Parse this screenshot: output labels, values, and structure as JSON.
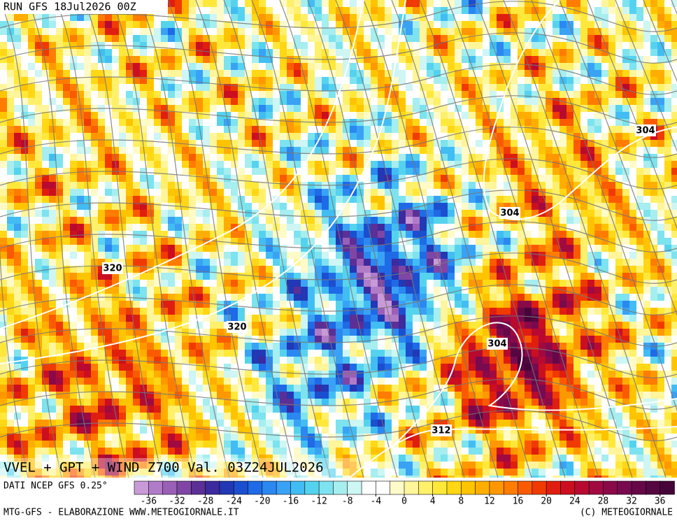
{
  "header": {
    "run": "RUN GFS 18Jul2026 00Z",
    "title": "VVEL + GPT + WIND Z700 Val. 03Z24JUL2026"
  },
  "contour_labels": [
    "320",
    "320",
    "304",
    "304",
    "304",
    "312"
  ],
  "colorbar": {
    "source": "DATI NCEP GFS 0.25°",
    "range": [
      -38,
      38
    ],
    "ticks": [
      -36,
      -32,
      -28,
      -24,
      -20,
      -16,
      -12,
      -8,
      -4,
      0,
      4,
      8,
      12,
      16,
      20,
      24,
      28,
      32,
      36
    ],
    "colors": [
      "#c99ad8",
      "#b07cc8",
      "#9a5fb7",
      "#7f46a6",
      "#5c2f96",
      "#3d2a9e",
      "#2238b4",
      "#1b4fd0",
      "#1f6ae6",
      "#2a88f0",
      "#3aa2f5",
      "#42bdf3",
      "#55d3ee",
      "#7de3ee",
      "#a6eef0",
      "#cdf6f4",
      "#ffffff",
      "#ffffff",
      "#fffbc8",
      "#fff59a",
      "#fff06a",
      "#ffe83a",
      "#ffd714",
      "#ffc400",
      "#ffae00",
      "#ff9800",
      "#ff7c00",
      "#fb5b00",
      "#f03a00",
      "#e01e10",
      "#cc0f20",
      "#b80a30",
      "#a00a40",
      "#8a0a48",
      "#780a50",
      "#660848",
      "#560640",
      "#460538"
    ]
  },
  "footer": {
    "left": "MTG-GFS - ELABORAZIONE WWW.METEOGIORNALE.IT",
    "right": "(C) METEOGIORNALE"
  }
}
